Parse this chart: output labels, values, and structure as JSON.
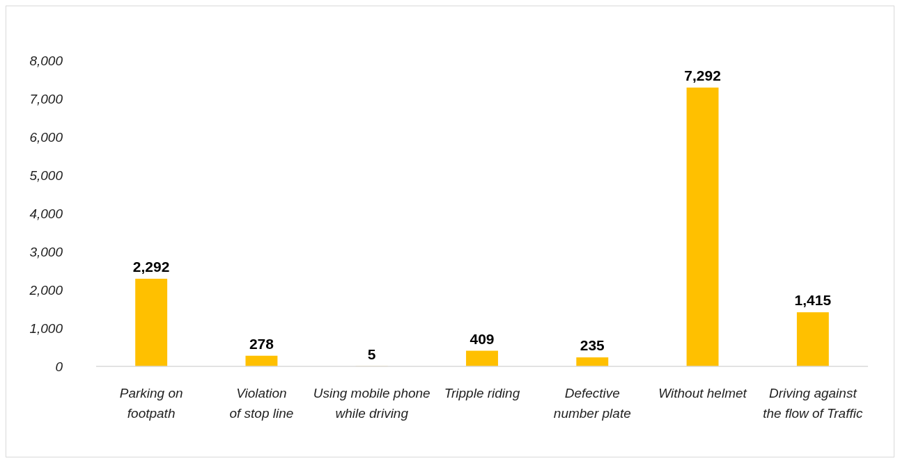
{
  "chart_data": {
    "type": "bar",
    "categories": [
      "Parking on footpath",
      "Violation of stop line",
      "Using mobile phone while driving",
      "Tripple riding",
      "Defective number plate",
      "Without helmet",
      "Driving against the flow of Traffic"
    ],
    "values": [
      2292,
      278,
      5,
      409,
      235,
      7292,
      1415
    ],
    "color": "#ffc000",
    "ylim": [
      0,
      8000
    ],
    "yticks": [
      {
        "value": 0,
        "label": "0"
      },
      {
        "value": 1000,
        "label": "1,000"
      },
      {
        "value": 2000,
        "label": "2,000"
      },
      {
        "value": 3000,
        "label": "3,000"
      },
      {
        "value": 4000,
        "label": "4,000"
      },
      {
        "value": 5000,
        "label": "5,000"
      },
      {
        "value": 6000,
        "label": "6,000"
      },
      {
        "value": 7000,
        "label": "7,000"
      },
      {
        "value": 8000,
        "label": "8,000"
      }
    ],
    "value_labels": [
      "2,292",
      "278",
      "5",
      "409",
      "235",
      "7,292",
      "1,415"
    ],
    "grid": false
  }
}
